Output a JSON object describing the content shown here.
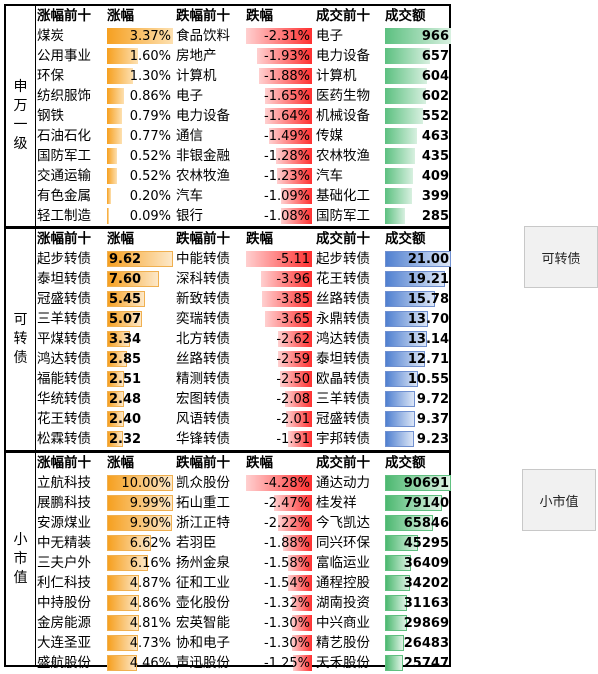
{
  "sections": [
    {
      "side_label": [
        "申",
        "万",
        "一",
        "级"
      ],
      "headers": [
        "涨幅前十",
        "涨幅",
        "跌幅前十",
        "跌幅",
        "成交前十",
        "成交额"
      ],
      "rows": [
        {
          "up_name": "煤炭",
          "up_pct": "3.37%",
          "up_frac": 1.0,
          "down_name": "食品饮料",
          "down_pct": "-2.31%",
          "down_frac": 1.0,
          "vol_name": "电子",
          "vol_val": "966",
          "vol_frac": 1.0
        },
        {
          "up_name": "公用事业",
          "up_pct": "1.60%",
          "up_frac": 0.47,
          "down_name": "房地产",
          "down_pct": "-1.93%",
          "down_frac": 0.84,
          "vol_name": "电力设备",
          "vol_val": "657",
          "vol_frac": 0.68
        },
        {
          "up_name": "环保",
          "up_pct": "1.30%",
          "up_frac": 0.39,
          "down_name": "计算机",
          "down_pct": "-1.88%",
          "down_frac": 0.81,
          "vol_name": "计算机",
          "vol_val": "604",
          "vol_frac": 0.63
        },
        {
          "up_name": "纺织服饰",
          "up_pct": "0.86%",
          "up_frac": 0.26,
          "down_name": "电子",
          "down_pct": "-1.65%",
          "down_frac": 0.71,
          "vol_name": "医药生物",
          "vol_val": "602",
          "vol_frac": 0.62
        },
        {
          "up_name": "钢铁",
          "up_pct": "0.79%",
          "up_frac": 0.23,
          "down_name": "电力设备",
          "down_pct": "-1.64%",
          "down_frac": 0.71,
          "vol_name": "机械设备",
          "vol_val": "552",
          "vol_frac": 0.57
        },
        {
          "up_name": "石油石化",
          "up_pct": "0.77%",
          "up_frac": 0.23,
          "down_name": "通信",
          "down_pct": "-1.49%",
          "down_frac": 0.65,
          "vol_name": "传媒",
          "vol_val": "463",
          "vol_frac": 0.48
        },
        {
          "up_name": "国防军工",
          "up_pct": "0.52%",
          "up_frac": 0.15,
          "down_name": "非银金融",
          "down_pct": "-1.28%",
          "down_frac": 0.55,
          "vol_name": "农林牧渔",
          "vol_val": "435",
          "vol_frac": 0.45
        },
        {
          "up_name": "交通运输",
          "up_pct": "0.52%",
          "up_frac": 0.15,
          "down_name": "农林牧渔",
          "down_pct": "-1.23%",
          "down_frac": 0.53,
          "vol_name": "汽车",
          "vol_val": "409",
          "vol_frac": 0.42
        },
        {
          "up_name": "有色金属",
          "up_pct": "0.20%",
          "up_frac": 0.06,
          "down_name": "汽车",
          "down_pct": "-1.09%",
          "down_frac": 0.47,
          "vol_name": "基础化工",
          "vol_val": "399",
          "vol_frac": 0.41
        },
        {
          "up_name": "轻工制造",
          "up_pct": "0.09%",
          "up_frac": 0.03,
          "down_name": "银行",
          "down_pct": "-1.08%",
          "down_frac": 0.47,
          "vol_name": "国防军工",
          "vol_val": "285",
          "vol_frac": 0.3
        }
      ]
    },
    {
      "side_label": [
        "可",
        "转",
        "债"
      ],
      "headers": [
        "涨幅前十",
        "涨幅",
        "跌幅前十",
        "跌幅",
        "成交前十",
        "成交额"
      ],
      "rows": [
        {
          "up_name": "起步转债",
          "up_pct": "9.62",
          "up_frac": 1.0,
          "down_name": "中能转债",
          "down_pct": "-5.11",
          "down_frac": 1.0,
          "vol_name": "起步转债",
          "vol_val": "21.00",
          "vol_frac": 1.0
        },
        {
          "up_name": "泰坦转债",
          "up_pct": "7.60",
          "up_frac": 0.79,
          "down_name": "深科转债",
          "down_pct": "-3.96",
          "down_frac": 0.77,
          "vol_name": "花王转债",
          "vol_val": "19.21",
          "vol_frac": 0.91
        },
        {
          "up_name": "冠盛转债",
          "up_pct": "5.45",
          "up_frac": 0.57,
          "down_name": "新致转债",
          "down_pct": "-3.85",
          "down_frac": 0.75,
          "vol_name": "丝路转债",
          "vol_val": "15.78",
          "vol_frac": 0.75
        },
        {
          "up_name": "三羊转债",
          "up_pct": "5.07",
          "up_frac": 0.53,
          "down_name": "奕瑞转债",
          "down_pct": "-3.65",
          "down_frac": 0.71,
          "vol_name": "永鼎转债",
          "vol_val": "13.70",
          "vol_frac": 0.65
        },
        {
          "up_name": "平煤转债",
          "up_pct": "3.34",
          "up_frac": 0.35,
          "down_name": "北方转债",
          "down_pct": "-2.62",
          "down_frac": 0.51,
          "vol_name": "鸿达转债",
          "vol_val": "13.14",
          "vol_frac": 0.63
        },
        {
          "up_name": "鸿达转债",
          "up_pct": "2.85",
          "up_frac": 0.3,
          "down_name": "丝路转债",
          "down_pct": "-2.59",
          "down_frac": 0.51,
          "vol_name": "泰坦转债",
          "vol_val": "12.71",
          "vol_frac": 0.61
        },
        {
          "up_name": "福能转债",
          "up_pct": "2.51",
          "up_frac": 0.26,
          "down_name": "精测转债",
          "down_pct": "-2.50",
          "down_frac": 0.49,
          "vol_name": "欧晶转债",
          "vol_val": "10.55",
          "vol_frac": 0.5
        },
        {
          "up_name": "华统转债",
          "up_pct": "2.48",
          "up_frac": 0.26,
          "down_name": "宏图转债",
          "down_pct": "-2.08",
          "down_frac": 0.41,
          "vol_name": "三羊转债",
          "vol_val": "9.72",
          "vol_frac": 0.46
        },
        {
          "up_name": "花王转债",
          "up_pct": "2.40",
          "up_frac": 0.25,
          "down_name": "风语转债",
          "down_pct": "-2.01",
          "down_frac": 0.39,
          "vol_name": "冠盛转债",
          "vol_val": "9.37",
          "vol_frac": 0.45
        },
        {
          "up_name": "松霖转债",
          "up_pct": "2.32",
          "up_frac": 0.24,
          "down_name": "华锋转债",
          "down_pct": "-1.91",
          "down_frac": 0.37,
          "vol_name": "宇邦转债",
          "vol_val": "9.23",
          "vol_frac": 0.44
        }
      ]
    },
    {
      "side_label": [
        "小",
        "市",
        "值"
      ],
      "headers": [
        "涨幅前十",
        "涨幅",
        "跌幅前十",
        "跌幅",
        "成交前十",
        "成交额"
      ],
      "rows": [
        {
          "up_name": "立航科技",
          "up_pct": "10.00%",
          "up_frac": 1.0,
          "down_name": "凯众股份",
          "down_pct": "-4.28%",
          "down_frac": 1.0,
          "vol_name": "通达动力",
          "vol_val": "90691",
          "vol_frac": 1.0
        },
        {
          "up_name": "展鹏科技",
          "up_pct": "9.99%",
          "up_frac": 1.0,
          "down_name": "拓山重工",
          "down_pct": "-2.47%",
          "down_frac": 0.58,
          "vol_name": "桂发祥",
          "vol_val": "79140",
          "vol_frac": 0.87
        },
        {
          "up_name": "安源煤业",
          "up_pct": "9.90%",
          "up_frac": 0.99,
          "down_name": "浙江正特",
          "down_pct": "-2.22%",
          "down_frac": 0.52,
          "vol_name": "今飞凯达",
          "vol_val": "65846",
          "vol_frac": 0.73
        },
        {
          "up_name": "中无精装",
          "up_pct": "6.62%",
          "up_frac": 0.66,
          "down_name": "若羽臣",
          "down_pct": "-1.88%",
          "down_frac": 0.44,
          "vol_name": "同兴环保",
          "vol_val": "45295",
          "vol_frac": 0.5
        },
        {
          "up_name": "三夫户外",
          "up_pct": "6.16%",
          "up_frac": 0.62,
          "down_name": "扬州金泉",
          "down_pct": "-1.58%",
          "down_frac": 0.37,
          "vol_name": "富临运业",
          "vol_val": "36409",
          "vol_frac": 0.4
        },
        {
          "up_name": "利仁科技",
          "up_pct": "4.87%",
          "up_frac": 0.49,
          "down_name": "征和工业",
          "down_pct": "-1.54%",
          "down_frac": 0.36,
          "vol_name": "通程控股",
          "vol_val": "34202",
          "vol_frac": 0.38
        },
        {
          "up_name": "中持股份",
          "up_pct": "4.86%",
          "up_frac": 0.49,
          "down_name": "壶化股份",
          "down_pct": "-1.32%",
          "down_frac": 0.31,
          "vol_name": "湖南投资",
          "vol_val": "31163",
          "vol_frac": 0.34
        },
        {
          "up_name": "金房能源",
          "up_pct": "4.81%",
          "up_frac": 0.48,
          "down_name": "宏英智能",
          "down_pct": "-1.30%",
          "down_frac": 0.3,
          "vol_name": "中兴商业",
          "vol_val": "29869",
          "vol_frac": 0.33
        },
        {
          "up_name": "大连圣亚",
          "up_pct": "4.73%",
          "up_frac": 0.47,
          "down_name": "协和电子",
          "down_pct": "-1.30%",
          "down_frac": 0.3,
          "vol_name": "精艺股份",
          "vol_val": "26483",
          "vol_frac": 0.29
        },
        {
          "up_name": "盛航股份",
          "up_pct": "4.46%",
          "up_frac": 0.45,
          "down_name": "声迅股份",
          "down_pct": "-1.25%",
          "down_frac": 0.29,
          "vol_name": "天禾股份",
          "vol_val": "25747",
          "vol_frac": 0.28
        }
      ]
    }
  ],
  "buttons": {
    "convertible_bond": "可转债",
    "small_cap": "小市值"
  }
}
